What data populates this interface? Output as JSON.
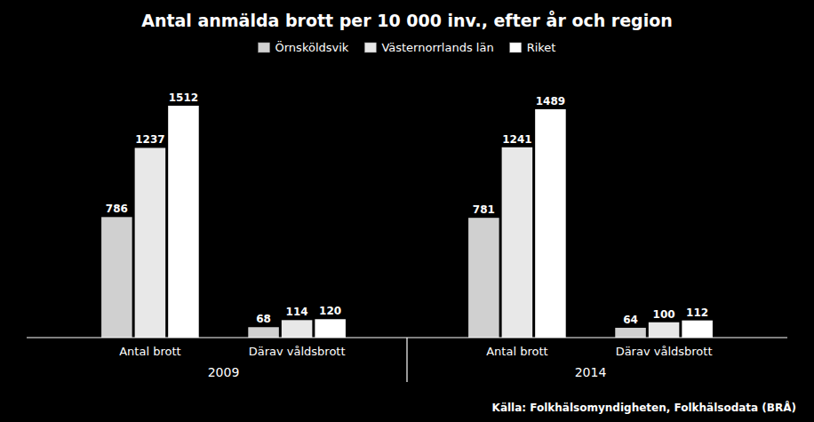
{
  "chart_data": {
    "type": "bar",
    "title": "Antal anmälda brott per 10 000 inv., efter år och region",
    "categories": [
      "Antal brott",
      "Därav våldsbrott",
      "Antal brott",
      "Därav våldsbrott"
    ],
    "annotations": [
      "2009",
      "2014"
    ],
    "source": "Källa: Folkhälsomyndigheten, Folkhälsodata (BRÅ)",
    "series": [
      {
        "name": "Örnsköldsvik",
        "color": "#d0d0d0",
        "values": [
          786,
          68,
          781,
          64
        ]
      },
      {
        "name": "Västernorrlands län",
        "color": "#e8e8e8",
        "values": [
          1237,
          114,
          1241,
          100
        ]
      },
      {
        "name": "Riket",
        "color": "#ffffff",
        "values": [
          1512,
          120,
          1489,
          112
        ]
      }
    ],
    "ylim": [
      0,
      1680
    ],
    "data_labels": true,
    "tick_labels": "x",
    "grid": false,
    "legend": "top"
  }
}
